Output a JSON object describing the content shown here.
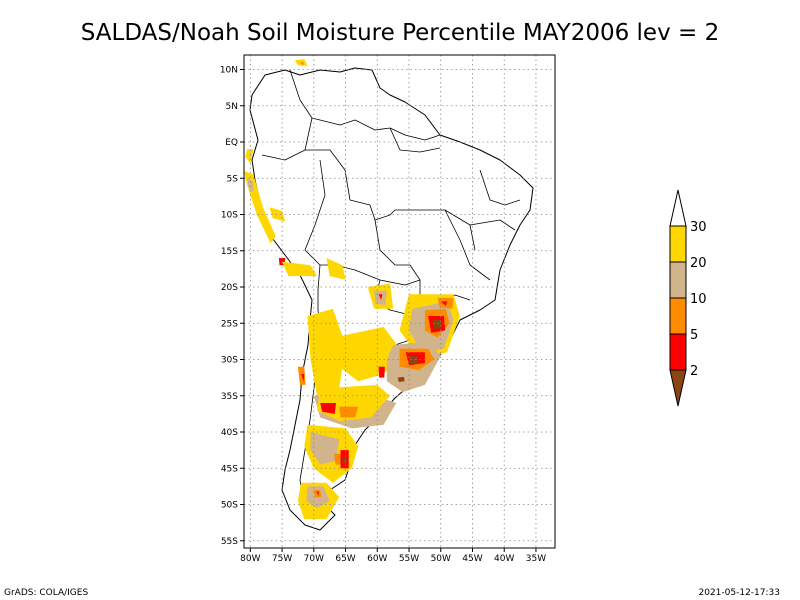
{
  "title": "SALDAS/Noah Soil Moisture Percentile MAY2006 lev = 2",
  "footer": {
    "left": "GrADS: COLA/IGES",
    "right": "2021-05-12-17:33"
  },
  "map": {
    "lon_range": [
      -81,
      -32
    ],
    "lat_range": [
      -56,
      12
    ],
    "x_ticks": [
      {
        "lon": -80,
        "label": "80W"
      },
      {
        "lon": -75,
        "label": "75W"
      },
      {
        "lon": -70,
        "label": "70W"
      },
      {
        "lon": -65,
        "label": "65W"
      },
      {
        "lon": -60,
        "label": "60W"
      },
      {
        "lon": -55,
        "label": "55W"
      },
      {
        "lon": -50,
        "label": "50W"
      },
      {
        "lon": -45,
        "label": "45W"
      },
      {
        "lon": -40,
        "label": "40W"
      },
      {
        "lon": -35,
        "label": "35W"
      }
    ],
    "y_ticks": [
      {
        "lat": 10,
        "label": "10N"
      },
      {
        "lat": 5,
        "label": "5N"
      },
      {
        "lat": 0,
        "label": "EQ"
      },
      {
        "lat": -5,
        "label": "5S"
      },
      {
        "lat": -10,
        "label": "10S"
      },
      {
        "lat": -15,
        "label": "15S"
      },
      {
        "lat": -20,
        "label": "20S"
      },
      {
        "lat": -25,
        "label": "25S"
      },
      {
        "lat": -30,
        "label": "30S"
      },
      {
        "lat": -35,
        "label": "35S"
      },
      {
        "lat": -40,
        "label": "40S"
      },
      {
        "lat": -45,
        "label": "45S"
      },
      {
        "lat": -50,
        "label": "50S"
      },
      {
        "lat": -55,
        "label": "55S"
      }
    ],
    "grid": true
  },
  "legend": {
    "placement": "right",
    "levels": [
      {
        "label": "2",
        "color": "#ff0000"
      },
      {
        "label": "5",
        "color": "#ff8c00"
      },
      {
        "label": "10",
        "color": "#d2b48c"
      },
      {
        "label": "20",
        "color": "#ffd700"
      },
      {
        "label": "30",
        "color": "#ffffff"
      }
    ],
    "below_color": "#8b4513",
    "top_color": "#ffffff"
  },
  "shading": [
    {
      "name": "colombia-north-coast",
      "color": "#ffd700",
      "pts": [
        [
          -73,
          11.3
        ],
        [
          -71.5,
          11.4
        ],
        [
          -71,
          10.5
        ],
        [
          -72.5,
          10.6
        ]
      ]
    },
    {
      "name": "colombia-coast-orange",
      "color": "#ff8c00",
      "pts": [
        [
          -72.2,
          11
        ],
        [
          -71.6,
          11
        ],
        [
          -71.7,
          10.5
        ]
      ]
    },
    {
      "name": "ecuador-coast",
      "color": "#ffd700",
      "pts": [
        [
          -80.5,
          -1
        ],
        [
          -79.5,
          -1
        ],
        [
          -80,
          -3
        ],
        [
          -80.8,
          -2
        ]
      ]
    },
    {
      "name": "peru-coast",
      "color": "#ffd700",
      "pts": [
        [
          -81,
          -4
        ],
        [
          -79.5,
          -4.5
        ],
        [
          -78,
          -9
        ],
        [
          -76,
          -13
        ],
        [
          -76.8,
          -14
        ],
        [
          -79,
          -10
        ],
        [
          -80.5,
          -6
        ]
      ]
    },
    {
      "name": "peru-coast-tan",
      "color": "#d2b48c",
      "pts": [
        [
          -80.5,
          -5
        ],
        [
          -79.5,
          -5.5
        ],
        [
          -79.5,
          -7
        ],
        [
          -80.3,
          -6.2
        ]
      ]
    },
    {
      "name": "peru-inland",
      "color": "#ffd700",
      "pts": [
        [
          -77,
          -9
        ],
        [
          -75,
          -9.5
        ],
        [
          -74.5,
          -11
        ],
        [
          -76.5,
          -10.5
        ]
      ]
    },
    {
      "name": "peru-south-red",
      "color": "#ff0000",
      "pts": [
        [
          -75.5,
          -16
        ],
        [
          -74.5,
          -16
        ],
        [
          -74.6,
          -17
        ],
        [
          -75.4,
          -17
        ]
      ]
    },
    {
      "name": "peru-south",
      "color": "#ffd700",
      "pts": [
        [
          -75,
          -16.5
        ],
        [
          -70.5,
          -17
        ],
        [
          -69.5,
          -18.5
        ],
        [
          -74,
          -18.5
        ]
      ]
    },
    {
      "name": "altiplano",
      "color": "#ffd700",
      "pts": [
        [
          -68,
          -16
        ],
        [
          -65.5,
          -17
        ],
        [
          -65,
          -19
        ],
        [
          -67.5,
          -18.5
        ]
      ]
    },
    {
      "name": "paraguay-chaco",
      "color": "#ffd700",
      "pts": [
        [
          -61.5,
          -20
        ],
        [
          -58,
          -19.5
        ],
        [
          -57.5,
          -23
        ],
        [
          -60.5,
          -23
        ]
      ]
    },
    {
      "name": "paraguay-chaco-tan",
      "color": "#d2b48c",
      "pts": [
        [
          -60.5,
          -20.5
        ],
        [
          -58.5,
          -20.5
        ],
        [
          -58.7,
          -22.5
        ],
        [
          -60.3,
          -22.3
        ]
      ]
    },
    {
      "name": "paraguay-red",
      "color": "#ff0000",
      "pts": [
        [
          -59.8,
          -21
        ],
        [
          -59.2,
          -21
        ],
        [
          -59.4,
          -21.8
        ]
      ]
    },
    {
      "name": "west-argentina-band",
      "color": "#ffd700",
      "pts": [
        [
          -71,
          -24
        ],
        [
          -67,
          -23
        ],
        [
          -65,
          -28
        ],
        [
          -66,
          -34
        ],
        [
          -69.5,
          -35
        ],
        [
          -70.5,
          -30
        ]
      ]
    },
    {
      "name": "central-argentina",
      "color": "#ffd700",
      "pts": [
        [
          -67,
          -27
        ],
        [
          -59,
          -25.5
        ],
        [
          -56,
          -29
        ],
        [
          -59,
          -32
        ],
        [
          -63,
          -33
        ],
        [
          -66,
          -31
        ]
      ]
    },
    {
      "name": "south-brazil-yellow",
      "color": "#ffd700",
      "pts": [
        [
          -55,
          -21
        ],
        [
          -48,
          -21
        ],
        [
          -47,
          -24
        ],
        [
          -49,
          -29
        ],
        [
          -53,
          -30
        ],
        [
          -56.5,
          -26
        ]
      ]
    },
    {
      "name": "south-brazil-tan",
      "color": "#d2b48c",
      "pts": [
        [
          -54.5,
          -23
        ],
        [
          -49,
          -22
        ],
        [
          -48,
          -24.5
        ],
        [
          -49.5,
          -28.5
        ],
        [
          -53,
          -29
        ],
        [
          -55,
          -26
        ]
      ]
    },
    {
      "name": "south-brazil-orange",
      "color": "#ff8c00",
      "pts": [
        [
          -52.5,
          -23.2
        ],
        [
          -49.2,
          -23
        ],
        [
          -48.6,
          -25
        ],
        [
          -50.5,
          -27
        ],
        [
          -52.5,
          -26
        ]
      ]
    },
    {
      "name": "south-brazil-red",
      "color": "#ff0000",
      "pts": [
        [
          -52,
          -24
        ],
        [
          -49.5,
          -24
        ],
        [
          -49.3,
          -26
        ],
        [
          -51.5,
          -26.3
        ]
      ]
    },
    {
      "name": "south-brazil-brown",
      "color": "#8b4513",
      "pts": [
        [
          -51.3,
          -24.5
        ],
        [
          -50,
          -24.6
        ],
        [
          -49.8,
          -25.7
        ],
        [
          -51,
          -25.8
        ]
      ]
    },
    {
      "name": "sp-orange",
      "color": "#ff8c00",
      "pts": [
        [
          -50.5,
          -21.5
        ],
        [
          -48,
          -21.5
        ],
        [
          -48.2,
          -23
        ],
        [
          -50.2,
          -22.8
        ]
      ]
    },
    {
      "name": "sp-red",
      "color": "#ff0000",
      "pts": [
        [
          -50,
          -22
        ],
        [
          -49,
          -22
        ],
        [
          -49.2,
          -22.6
        ]
      ]
    },
    {
      "name": "rgs-uruguay-tan",
      "color": "#d2b48c",
      "pts": [
        [
          -57.5,
          -28
        ],
        [
          -52,
          -27.5
        ],
        [
          -50,
          -29.5
        ],
        [
          -52.5,
          -33.5
        ],
        [
          -56,
          -34.5
        ],
        [
          -58.5,
          -33
        ],
        [
          -58.5,
          -30
        ]
      ]
    },
    {
      "name": "rgs-orange",
      "color": "#ff8c00",
      "pts": [
        [
          -56.5,
          -28.5
        ],
        [
          -52,
          -28.5
        ],
        [
          -51,
          -30
        ],
        [
          -53.5,
          -31.5
        ],
        [
          -56.5,
          -31
        ]
      ]
    },
    {
      "name": "rgs-red",
      "color": "#ff0000",
      "pts": [
        [
          -55.5,
          -29
        ],
        [
          -52.5,
          -29
        ],
        [
          -52.5,
          -30.5
        ],
        [
          -55,
          -30.8
        ]
      ]
    },
    {
      "name": "rgs-brown",
      "color": "#8b4513",
      "pts": [
        [
          -55,
          -29.5
        ],
        [
          -53.5,
          -29.6
        ],
        [
          -53.7,
          -30.5
        ],
        [
          -54.8,
          -30.6
        ]
      ]
    },
    {
      "name": "uruguay-brown",
      "color": "#8b4513",
      "pts": [
        [
          -56.8,
          -32.5
        ],
        [
          -55.8,
          -32.4
        ],
        [
          -55.7,
          -33
        ],
        [
          -56.6,
          -33.1
        ]
      ]
    },
    {
      "name": "entre-rios-red",
      "color": "#ff0000",
      "pts": [
        [
          -59.8,
          -31
        ],
        [
          -58.8,
          -31
        ],
        [
          -58.9,
          -32.5
        ],
        [
          -59.7,
          -32.5
        ]
      ]
    },
    {
      "name": "chile-central-orange",
      "color": "#ff8c00",
      "pts": [
        [
          -72.5,
          -31
        ],
        [
          -71.5,
          -31
        ],
        [
          -71.3,
          -33.5
        ],
        [
          -72.2,
          -33.5
        ]
      ]
    },
    {
      "name": "chile-central-red",
      "color": "#ff0000",
      "pts": [
        [
          -72,
          -32
        ],
        [
          -71.5,
          -32
        ],
        [
          -71.6,
          -33
        ]
      ]
    },
    {
      "name": "pampas-tan",
      "color": "#d2b48c",
      "pts": [
        [
          -70,
          -35
        ],
        [
          -62,
          -34.5
        ],
        [
          -57,
          -36
        ],
        [
          -59,
          -39
        ],
        [
          -64,
          -39.5
        ],
        [
          -69,
          -38
        ]
      ]
    },
    {
      "name": "pampas-yellow",
      "color": "#ffd700",
      "pts": [
        [
          -69,
          -34
        ],
        [
          -60,
          -33.5
        ],
        [
          -58,
          -35
        ],
        [
          -61,
          -38
        ],
        [
          -66,
          -38.5
        ],
        [
          -69.5,
          -37
        ]
      ]
    },
    {
      "name": "pampas-red",
      "color": "#ff0000",
      "pts": [
        [
          -69,
          -36
        ],
        [
          -66.5,
          -36
        ],
        [
          -66.7,
          -37.5
        ],
        [
          -68.7,
          -37.2
        ]
      ]
    },
    {
      "name": "pampas-orange",
      "color": "#ff8c00",
      "pts": [
        [
          -66,
          -36.5
        ],
        [
          -63,
          -36.5
        ],
        [
          -63.5,
          -38
        ],
        [
          -65.8,
          -38
        ]
      ]
    },
    {
      "name": "patagonia-yellow",
      "color": "#ffd700",
      "pts": [
        [
          -71,
          -39
        ],
        [
          -65,
          -39.5
        ],
        [
          -63,
          -42
        ],
        [
          -64,
          -45
        ],
        [
          -67,
          -47
        ],
        [
          -70,
          -45
        ],
        [
          -71.5,
          -42
        ]
      ]
    },
    {
      "name": "patagonia-tan",
      "color": "#d2b48c",
      "pts": [
        [
          -70.5,
          -40
        ],
        [
          -66,
          -41
        ],
        [
          -66.5,
          -44
        ],
        [
          -69,
          -44.5
        ],
        [
          -70.5,
          -42.5
        ]
      ]
    },
    {
      "name": "chubut-red",
      "color": "#ff0000",
      "pts": [
        [
          -65.8,
          -42.5
        ],
        [
          -64.5,
          -42.5
        ],
        [
          -64.5,
          -45
        ],
        [
          -65.8,
          -45
        ]
      ]
    },
    {
      "name": "chubut-orange",
      "color": "#ff8c00",
      "pts": [
        [
          -66.8,
          -43
        ],
        [
          -65.8,
          -43
        ],
        [
          -65.8,
          -44.5
        ],
        [
          -66.6,
          -44.5
        ]
      ]
    },
    {
      "name": "chubut-brown",
      "color": "#8b4513",
      "pts": [
        [
          -65.5,
          -43.5
        ],
        [
          -64.8,
          -43.5
        ],
        [
          -64.9,
          -44.4
        ],
        [
          -65.4,
          -44.4
        ]
      ]
    },
    {
      "name": "santa-cruz-yellow",
      "color": "#ffd700",
      "pts": [
        [
          -72,
          -47
        ],
        [
          -68,
          -47
        ],
        [
          -66,
          -49
        ],
        [
          -68,
          -52
        ],
        [
          -71.5,
          -52
        ],
        [
          -72.5,
          -49.5
        ]
      ]
    },
    {
      "name": "santa-cruz-tan",
      "color": "#d2b48c",
      "pts": [
        [
          -71,
          -47.5
        ],
        [
          -68.5,
          -47.5
        ],
        [
          -67.5,
          -49.5
        ],
        [
          -69.5,
          -50.5
        ],
        [
          -71.2,
          -49.5
        ]
      ]
    },
    {
      "name": "santa-cruz-orange",
      "color": "#ff8c00",
      "pts": [
        [
          -70,
          -48
        ],
        [
          -69,
          -48
        ],
        [
          -68.8,
          -49
        ],
        [
          -69.8,
          -49
        ]
      ]
    },
    {
      "name": "santa-cruz-red",
      "color": "#ff0000",
      "pts": [
        [
          -69.6,
          -48.2
        ],
        [
          -69.2,
          -48.2
        ],
        [
          -69.3,
          -48.8
        ]
      ]
    }
  ]
}
